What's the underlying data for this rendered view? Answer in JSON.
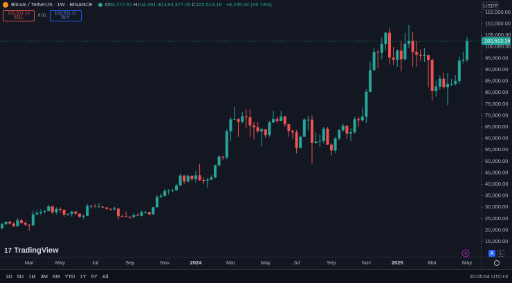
{
  "header": {
    "symbol": "Bitcoin / TetherUS · 1W · BINANCE",
    "ohlc": [
      {
        "key": "O",
        "value": "94,277.61"
      },
      {
        "key": "H",
        "value": "104,361.30"
      },
      {
        "key": "L",
        "value": "93,377.00"
      },
      {
        "key": "C",
        "value": "102,513.16"
      }
    ],
    "change": "+8,235.54 (+8.74%)"
  },
  "trade": {
    "sell_price": "102,511.10",
    "sell": "SELL",
    "spread": "0.01",
    "buy_price": "102,511.11",
    "buy": "BUY"
  },
  "logo": "TradingView",
  "scale_buttons": [
    "A",
    "L"
  ],
  "toolbar": {
    "ranges": [
      "1D",
      "5D",
      "1M",
      "3M",
      "6M",
      "YTD",
      "1Y",
      "5Y",
      "All"
    ],
    "clock": "20:05:04 UTC+3"
  },
  "chart_data": {
    "type": "candlestick",
    "currency": "USDT",
    "up_color": "#26a69a",
    "down_color": "#ef5350",
    "grid": false,
    "ylim": [
      8400,
      120400
    ],
    "yticks": [
      {
        "value": 15000,
        "label": "15,000.00"
      },
      {
        "value": 20000,
        "label": "20,000.00"
      },
      {
        "value": 25000,
        "label": "25,000.00"
      },
      {
        "value": 30000,
        "label": "30,000.00"
      },
      {
        "value": 35000,
        "label": "35,000.00"
      },
      {
        "value": 40000,
        "label": "40,000.00"
      },
      {
        "value": 45000,
        "label": "45,000.00"
      },
      {
        "value": 50000,
        "label": "50,000.00"
      },
      {
        "value": 55000,
        "label": "55,000.00"
      },
      {
        "value": 60000,
        "label": "60,000.00"
      },
      {
        "value": 65000,
        "label": "65,000.00"
      },
      {
        "value": 70000,
        "label": "70,000.00"
      },
      {
        "value": 75000,
        "label": "75,000.00"
      },
      {
        "value": 80000,
        "label": "80,000.00"
      },
      {
        "value": 85000,
        "label": "85,000.00"
      },
      {
        "value": 90000,
        "label": "90,000.00"
      },
      {
        "value": 95000,
        "label": "95,000.00"
      },
      {
        "value": 100000,
        "label": "100,000.00"
      },
      {
        "value": 105000,
        "label": "105,000.00"
      },
      {
        "value": 110000,
        "label": "110,000.00"
      },
      {
        "value": 115000,
        "label": "115,000.00"
      }
    ],
    "last_price": {
      "value": 102513.16,
      "label": "102,513.16"
    },
    "categories": [
      null,
      null,
      null,
      null,
      null,
      null,
      null,
      "Mar",
      null,
      null,
      null,
      null,
      null,
      null,
      null,
      "May",
      null,
      null,
      null,
      null,
      null,
      null,
      null,
      null,
      "Jul",
      null,
      null,
      null,
      null,
      null,
      null,
      null,
      null,
      "Sep",
      null,
      null,
      null,
      null,
      null,
      null,
      null,
      null,
      "Nov",
      null,
      null,
      null,
      null,
      null,
      null,
      null,
      "2024",
      null,
      null,
      null,
      null,
      null,
      null,
      null,
      null,
      "Mar",
      null,
      null,
      null,
      null,
      null,
      null,
      null,
      null,
      "May",
      null,
      null,
      null,
      null,
      null,
      null,
      null,
      "Jul",
      null,
      null,
      null,
      null,
      null,
      null,
      null,
      null,
      "Sep",
      null,
      null,
      null,
      null,
      null,
      null,
      null,
      null,
      "Nov",
      null,
      null,
      null,
      null,
      null,
      null,
      null,
      "2025",
      null,
      null,
      null,
      null,
      null,
      null,
      null,
      null,
      "Mar",
      null,
      null,
      null,
      null,
      null,
      null,
      null,
      null,
      "May"
    ],
    "open": [
      20900,
      22600,
      23700,
      22900,
      21800,
      24300,
      23200,
      22400,
      22100,
      26900,
      27500,
      28000,
      28300,
      30400,
      27800,
      29200,
      28900,
      26800,
      27100,
      28100,
      27200,
      25900,
      26300,
      30500,
      30600,
      30300,
      30300,
      29900,
      29300,
      29000,
      29400,
      26100,
      26000,
      25900,
      25800,
      26600,
      26300,
      27900,
      27900,
      26900,
      30000,
      34500,
      35000,
      37100,
      37400,
      37500,
      39500,
      43800,
      41300,
      43700,
      42300,
      43900,
      41800,
      41600,
      42000,
      43000,
      48300,
      52100,
      51700,
      63100,
      68300,
      68400,
      67200,
      69700,
      69300,
      65700,
      64900,
      63100,
      64000,
      61500,
      67000,
      68500,
      67700,
      69600,
      66200,
      63200,
      62700,
      55900,
      60800,
      68200,
      68200,
      58100,
      58700,
      59000,
      64200,
      57300,
      54800,
      60000,
      63600,
      65600,
      62100,
      62800,
      68400,
      67900,
      69500,
      80400,
      89800,
      97700,
      97400,
      101200,
      106100,
      95300,
      94300,
      98300,
      94500,
      101300,
      102600,
      97700,
      96500,
      96100,
      96300,
      94200,
      80700,
      82600,
      86100,
      82400,
      83700,
      83700,
      85100,
      94000,
      94277.61
    ],
    "high": [
      23300,
      23900,
      24200,
      23400,
      25200,
      25000,
      23900,
      22600,
      28500,
      28900,
      29100,
      28800,
      31000,
      30500,
      30000,
      29900,
      29000,
      27500,
      28400,
      28400,
      27300,
      26800,
      31400,
      31000,
      31500,
      31800,
      30400,
      29900,
      29500,
      30200,
      29700,
      26800,
      28100,
      26100,
      27400,
      27400,
      28600,
      28600,
      28000,
      30300,
      35300,
      35900,
      38000,
      37900,
      38000,
      40200,
      44700,
      44000,
      44300,
      43800,
      45900,
      48900,
      43200,
      42900,
      43900,
      48600,
      52800,
      52500,
      64000,
      69200,
      73800,
      68900,
      71600,
      72800,
      72700,
      67200,
      67100,
      64700,
      64000,
      67700,
      71900,
      69600,
      71900,
      70000,
      66500,
      64000,
      63800,
      61300,
      68900,
      69900,
      70000,
      62700,
      61800,
      65000,
      64900,
      58000,
      60700,
      64100,
      66500,
      65600,
      64400,
      69400,
      69500,
      73600,
      81500,
      93500,
      99600,
      98700,
      104000,
      106500,
      108400,
      99900,
      98900,
      102700,
      106000,
      109600,
      106500,
      102500,
      98800,
      99500,
      96500,
      95000,
      85300,
      87500,
      88800,
      88500,
      86000,
      87600,
      95800,
      97900,
      104361.3
    ],
    "low": [
      20400,
      22300,
      22500,
      21400,
      21500,
      22700,
      21900,
      19600,
      21900,
      26600,
      26600,
      27200,
      28200,
      27100,
      26900,
      27700,
      25800,
      26300,
      25900,
      26600,
      25400,
      24800,
      26200,
      29500,
      29700,
      29900,
      29500,
      28900,
      28600,
      28700,
      24600,
      25800,
      25700,
      24900,
      25100,
      26200,
      26000,
      27200,
      26500,
      26800,
      29800,
      34100,
      34600,
      35500,
      36700,
      37300,
      39400,
      40200,
      40600,
      41300,
      40800,
      41400,
      40300,
      38600,
      41800,
      42600,
      47700,
      50600,
      50900,
      59000,
      68000,
      60800,
      66700,
      64500,
      60700,
      59600,
      62400,
      56500,
      60200,
      60700,
      66800,
      66600,
      67600,
      65100,
      60800,
      59800,
      53500,
      55700,
      60600,
      63500,
      49100,
      57700,
      56300,
      57900,
      57200,
      52600,
      53700,
      59200,
      62900,
      59800,
      58900,
      62100,
      65100,
      67500,
      66800,
      80200,
      89400,
      90800,
      94500,
      98500,
      92200,
      92000,
      91200,
      89300,
      94000,
      99500,
      91200,
      91200,
      94000,
      93300,
      82300,
      76600,
      78400,
      81200,
      81600,
      74500,
      83000,
      83200,
      83900,
      92800,
      93377
    ],
    "close": [
      22600,
      23700,
      22900,
      21800,
      24300,
      23200,
      22400,
      22100,
      26900,
      27500,
      28000,
      28300,
      30400,
      27800,
      29200,
      28900,
      26800,
      27100,
      28100,
      27200,
      25900,
      26300,
      30500,
      30600,
      30300,
      30300,
      29900,
      29300,
      29000,
      29400,
      26100,
      26000,
      25900,
      25800,
      26600,
      26300,
      27900,
      27900,
      26900,
      30000,
      34500,
      35000,
      37100,
      37400,
      37500,
      39500,
      43800,
      41300,
      43700,
      42300,
      43900,
      41800,
      41600,
      42000,
      43000,
      48300,
      52100,
      51700,
      63100,
      68300,
      68400,
      67200,
      69700,
      69300,
      65700,
      64900,
      63100,
      64000,
      61500,
      67000,
      68500,
      67700,
      69600,
      66200,
      63200,
      62700,
      55900,
      60800,
      68200,
      68200,
      58100,
      58700,
      59000,
      64200,
      57300,
      54800,
      60000,
      63600,
      65600,
      62100,
      62800,
      68400,
      67900,
      69500,
      80400,
      89800,
      97700,
      97400,
      101200,
      106100,
      95300,
      94300,
      98300,
      94500,
      101300,
      102600,
      97700,
      96500,
      96100,
      96300,
      94200,
      80700,
      82600,
      86100,
      82400,
      83700,
      83700,
      85100,
      94000,
      94300,
      102513.16
    ]
  }
}
